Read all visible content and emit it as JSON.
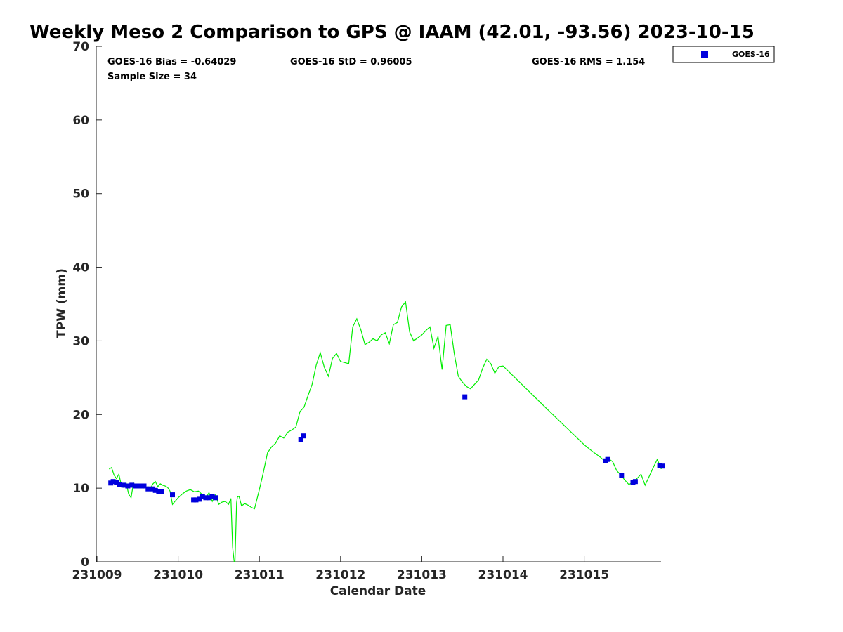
{
  "chart_data": {
    "type": "line",
    "title": "Weekly Meso 2 Comparison to GPS @ IAAM (42.01, -93.56) 2023-10-15",
    "xlabel": "Calendar Date",
    "ylabel": "TPW (mm)",
    "xlim": [
      231009,
      231016
    ],
    "ylim": [
      0,
      70
    ],
    "x_ticks": [
      231009,
      231010,
      231011,
      231012,
      231013,
      231014,
      231015
    ],
    "x_tick_labels": [
      "231009",
      "231010",
      "231011",
      "231012",
      "231013",
      "231014",
      "231015"
    ],
    "y_ticks": [
      0,
      10,
      20,
      30,
      40,
      50,
      60,
      70
    ],
    "y_tick_labels": [
      "0",
      "10",
      "20",
      "30",
      "40",
      "50",
      "60",
      "70"
    ],
    "grid": false,
    "stats": {
      "bias": "GOES-16 Bias = -0.64029",
      "std": "GOES-16 StD = 0.96005",
      "rms": "GOES-16 RMS = 1.154",
      "sample_size": "Sample Size = 34"
    },
    "legend": {
      "position": "top-right-outside",
      "entries": [
        "GOES-16"
      ]
    },
    "colors": {
      "gps_line": "#00ee00",
      "goes_marker": "#0000dd"
    },
    "series": [
      {
        "kind": "line",
        "color": "#00ee00",
        "x": [
          231009.15,
          231009.18,
          231009.21,
          231009.24,
          231009.27,
          231009.3,
          231009.33,
          231009.36,
          231009.39,
          231009.42,
          231009.45,
          231009.48,
          231009.51,
          231009.54,
          231009.57,
          231009.6,
          231009.63,
          231009.66,
          231009.69,
          231009.72,
          231009.75,
          231009.78,
          231009.81,
          231009.84,
          231009.87,
          231009.9,
          231009.93,
          231009.96,
          231010.0,
          231010.05,
          231010.1,
          231010.15,
          231010.2,
          231010.25,
          231010.3,
          231010.34,
          231010.38,
          231010.42,
          231010.46,
          231010.5,
          231010.54,
          231010.58,
          231010.62,
          231010.65,
          231010.67,
          231010.69,
          231010.7,
          231010.72,
          231010.73,
          231010.75,
          231010.78,
          231010.82,
          231010.86,
          231010.9,
          231010.94,
          231011.0,
          231011.05,
          231011.1,
          231011.15,
          231011.2,
          231011.25,
          231011.3,
          231011.35,
          231011.4,
          231011.45,
          231011.5,
          231011.55,
          231011.6,
          231011.65,
          231011.7,
          231011.75,
          231011.8,
          231011.85,
          231011.9,
          231011.95,
          231012.0,
          231012.1,
          231012.15,
          231012.2,
          231012.25,
          231012.3,
          231012.35,
          231012.4,
          231012.45,
          231012.5,
          231012.55,
          231012.6,
          231012.65,
          231012.7,
          231012.75,
          231012.8,
          231012.85,
          231012.9,
          231013.0,
          231013.05,
          231013.1,
          231013.15,
          231013.2,
          231013.25,
          231013.3,
          231013.35,
          231013.4,
          231013.45,
          231013.5,
          231013.55,
          231013.6,
          231013.65,
          231013.7,
          231013.75,
          231013.8,
          231013.85,
          231013.9,
          231013.95,
          231014.0,
          231014.5,
          231015.0,
          231015.1,
          231015.2,
          231015.25,
          231015.3,
          231015.35,
          231015.4,
          231015.45,
          231015.5,
          231015.55,
          231015.6,
          231015.65,
          231015.7,
          231015.75,
          231015.8,
          231015.85,
          231015.9,
          231015.95
        ],
        "values": [
          12.6,
          12.8,
          11.8,
          11.3,
          11.9,
          10.4,
          10.1,
          10.7,
          9.2,
          8.7,
          10.7,
          10.3,
          10.5,
          10.2,
          10.0,
          10.1,
          10.2,
          10.0,
          10.6,
          10.9,
          10.2,
          10.6,
          10.4,
          10.3,
          10.1,
          9.6,
          7.8,
          8.2,
          8.7,
          9.2,
          9.6,
          9.8,
          9.5,
          9.6,
          9.1,
          8.6,
          9.4,
          8.2,
          9.1,
          7.8,
          8.1,
          8.2,
          7.8,
          8.6,
          2.0,
          0.0,
          0.0,
          8.0,
          8.8,
          8.9,
          7.6,
          7.9,
          7.7,
          7.4,
          7.2,
          9.8,
          12.2,
          14.8,
          15.6,
          16.1,
          17.1,
          16.8,
          17.6,
          17.9,
          18.3,
          20.4,
          21.0,
          22.6,
          24.1,
          26.7,
          28.4,
          26.4,
          25.2,
          27.6,
          28.3,
          27.2,
          26.9,
          31.9,
          33.0,
          31.5,
          29.5,
          29.8,
          30.3,
          30.0,
          30.8,
          31.1,
          29.6,
          32.2,
          32.5,
          34.6,
          35.3,
          31.2,
          30.0,
          30.8,
          31.4,
          31.9,
          29.0,
          30.6,
          26.1,
          32.1,
          32.2,
          28.3,
          25.2,
          24.4,
          23.8,
          23.5,
          24.1,
          24.7,
          26.3,
          27.5,
          26.9,
          25.6,
          26.5,
          26.6,
          21.2,
          15.9,
          15.0,
          14.2,
          13.7,
          14.0,
          13.6,
          12.4,
          11.8,
          11.1,
          10.5,
          10.8,
          11.3,
          11.9,
          10.4,
          11.6,
          12.8,
          13.9,
          12.6
        ]
      },
      {
        "kind": "scatter",
        "name": "GOES-16",
        "color": "#0000dd",
        "x": [
          231009.17,
          231009.2,
          231009.24,
          231009.28,
          231009.33,
          231009.38,
          231009.43,
          231009.48,
          231009.53,
          231009.58,
          231009.63,
          231009.68,
          231009.72,
          231009.76,
          231009.8,
          231009.93,
          231010.19,
          231010.22,
          231010.26,
          231010.3,
          231010.34,
          231010.38,
          231010.42,
          231010.46,
          231011.51,
          231011.54,
          231013.53,
          231015.26,
          231015.29,
          231015.46,
          231015.6,
          231015.63,
          231015.93,
          231015.96
        ],
        "values": [
          10.7,
          10.9,
          10.8,
          10.5,
          10.4,
          10.3,
          10.4,
          10.3,
          10.3,
          10.3,
          9.9,
          9.9,
          9.7,
          9.5,
          9.5,
          9.1,
          8.4,
          8.4,
          8.5,
          8.9,
          8.7,
          8.7,
          8.9,
          8.7,
          16.6,
          17.1,
          22.4,
          13.7,
          13.9,
          11.7,
          10.8,
          10.9,
          13.1,
          13.0
        ]
      }
    ]
  }
}
